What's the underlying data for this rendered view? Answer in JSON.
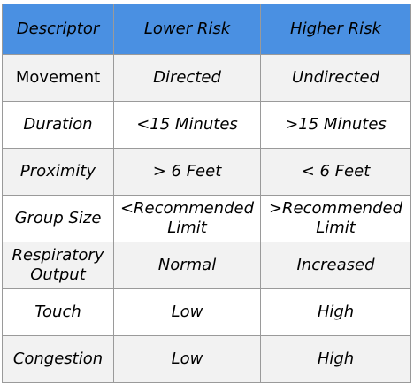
{
  "table": {
    "headers": [
      "Descriptor",
      "Lower Risk",
      "Higher Risk"
    ],
    "rows": [
      {
        "descriptor": "Movement",
        "lower": "Directed",
        "higher": "Undirected"
      },
      {
        "descriptor": "Duration",
        "lower": "<15 Minutes",
        "higher": ">15 Minutes"
      },
      {
        "descriptor": "Proximity",
        "lower": "> 6 Feet",
        "higher": "< 6 Feet"
      },
      {
        "descriptor": "Group Size",
        "lower": "<Recommended Limit",
        "higher": ">Recommended Limit"
      },
      {
        "descriptor": "Respiratory Output",
        "lower": "Normal",
        "higher": "Increased"
      },
      {
        "descriptor": "Touch",
        "lower": "Low",
        "higher": "High"
      },
      {
        "descriptor": "Congestion",
        "lower": "Low",
        "higher": "High"
      }
    ]
  },
  "colors": {
    "header_background": "#4a90e2",
    "row_shaded": "#f2f2f2",
    "row_plain": "#ffffff",
    "border": "#9a9a9a"
  }
}
